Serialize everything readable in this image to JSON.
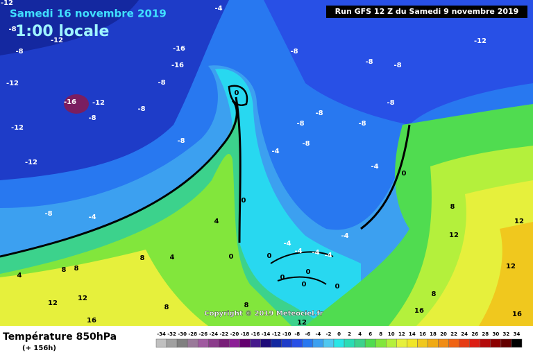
{
  "header": {
    "date": "Samedi 16 novembre 2019",
    "time": "1:00 locale",
    "run": "Run GFS 12 Z du Samedi 9 novembre 2019"
  },
  "footer": {
    "title": "Température 850hPa",
    "lead": "(+ 156h)",
    "copyright": "Copyright © 2019 Meteociel.fr"
  },
  "legend": {
    "values": [
      -34,
      -32,
      -30,
      -28,
      -26,
      -24,
      -22,
      -20,
      -18,
      -16,
      -14,
      -12,
      -10,
      -8,
      -6,
      -4,
      -2,
      0,
      2,
      4,
      6,
      8,
      10,
      12,
      14,
      16,
      18,
      20,
      22,
      24,
      26,
      28,
      30,
      32,
      34
    ],
    "colors": [
      "#c0c0c0",
      "#a0a0a0",
      "#808080",
      "#9a7a9a",
      "#a05aa0",
      "#8c3c8c",
      "#781e78",
      "#8c1e96",
      "#64006e",
      "#461a8c",
      "#1e0a78",
      "#1428a0",
      "#1e3cc8",
      "#2850e6",
      "#2878f0",
      "#3ca0f0",
      "#50c8f0",
      "#28e6e6",
      "#2adcb4",
      "#3cd28c",
      "#50dc50",
      "#82e63c",
      "#b4f03c",
      "#e6f03c",
      "#f0e628",
      "#f0c81e",
      "#f0aa14",
      "#f08c14",
      "#f06414",
      "#e63c14",
      "#dc1e14",
      "#b40a0a",
      "#8c0000",
      "#640000",
      "#000000"
    ]
  },
  "map_labels": [
    -12,
    -4,
    -8,
    -12,
    -8,
    -16,
    -16,
    -8,
    -12,
    -8,
    -8,
    -12,
    -8,
    0,
    -16,
    -12,
    -8,
    -8,
    -8,
    -8,
    -12,
    -8,
    -8,
    -8,
    -4,
    -8,
    -12,
    -4,
    0,
    -8,
    -4,
    0,
    4,
    8,
    12,
    -4,
    -4,
    -4,
    -4,
    -4,
    0,
    0,
    4,
    8,
    8,
    8,
    4,
    0,
    0,
    0,
    0,
    12,
    12,
    12,
    12,
    16,
    8,
    8,
    8,
    16,
    16,
    12
  ]
}
